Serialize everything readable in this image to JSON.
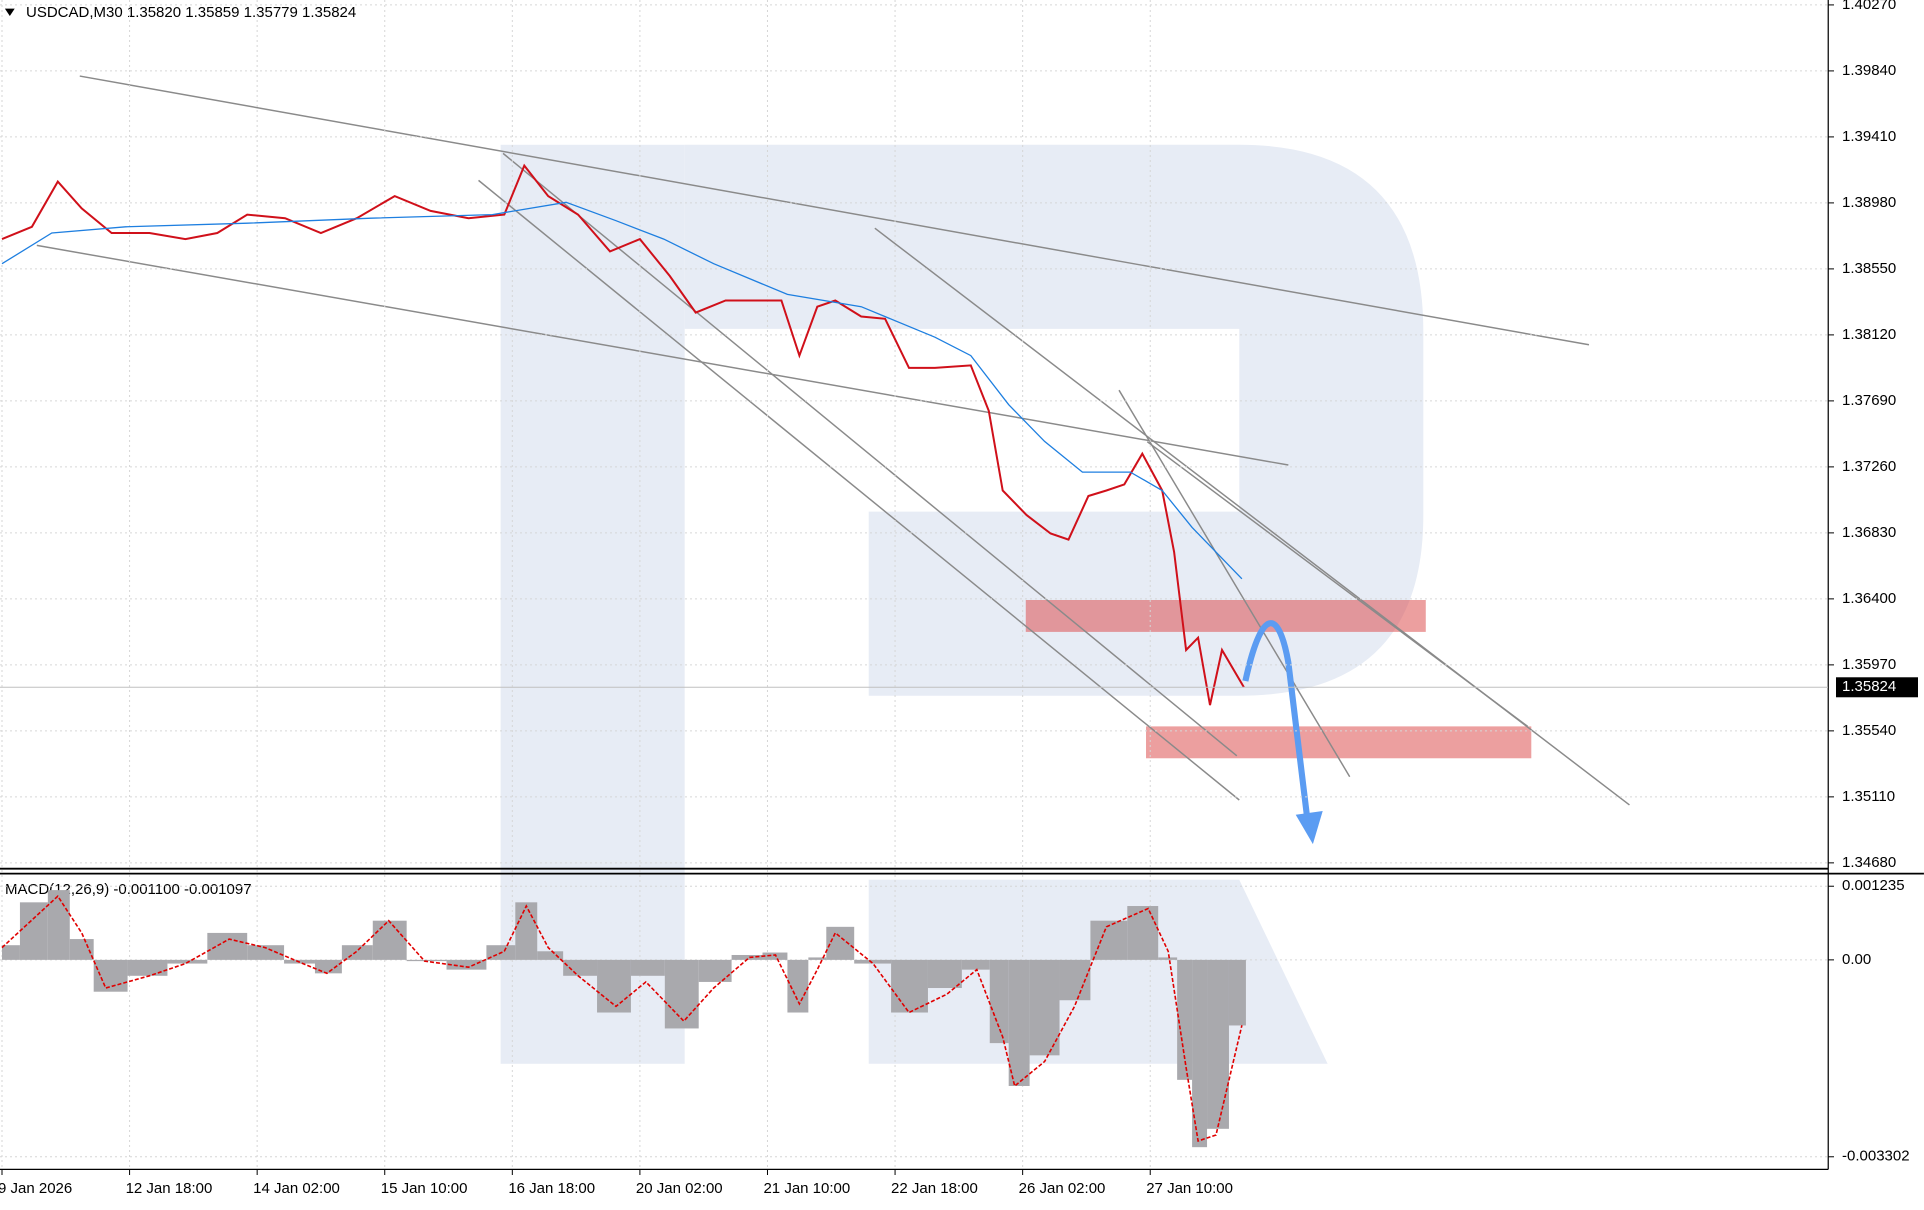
{
  "chart_data": [
    {
      "type": "line",
      "title": "USDCAD,M30  1.35820 1.35859 1.35779 1.35824",
      "series": [
        {
          "color": "#d0101a",
          "x": [
            0,
            15,
            28,
            40,
            55,
            74,
            92,
            108,
            123,
            142,
            160,
            178,
            197,
            215,
            234,
            252,
            262,
            274,
            289,
            305,
            320,
            335,
            348,
            363,
            378,
            391,
            400,
            409,
            418,
            431,
            443,
            455,
            468,
            486,
            495,
            502,
            514,
            526,
            535,
            545,
            554,
            563,
            572,
            582,
            588,
            594,
            600,
            606,
            612,
            623
          ],
          "values": [
            1.38744,
            1.38824,
            1.39119,
            1.38944,
            1.38784,
            1.38784,
            1.38744,
            1.38784,
            1.38904,
            1.3888,
            1.38784,
            1.3888,
            1.39024,
            1.38928,
            1.3888,
            1.38904,
            1.39223,
            1.39024,
            1.38904,
            1.38664,
            1.38744,
            1.38504,
            1.38265,
            1.38344,
            1.38344,
            1.38344,
            1.37985,
            1.38304,
            1.38344,
            1.3824,
            1.38225,
            1.37905,
            1.37905,
            1.37921,
            1.37625,
            1.37106,
            1.36946,
            1.36826,
            1.36786,
            1.3707,
            1.37106,
            1.37146,
            1.37346,
            1.37106,
            1.36706,
            1.36067,
            1.36147,
            1.35708,
            1.36067,
            1.35824
          ]
        },
        {
          "color": "#1e7fe0",
          "x": [
            0,
            25,
            62,
            123,
            185,
            246,
            283,
            308,
            332,
            357,
            394,
            431,
            468,
            486,
            505,
            523,
            542,
            566,
            582,
            597,
            622
          ],
          "values": [
            1.38584,
            1.38784,
            1.38824,
            1.38848,
            1.3888,
            1.38904,
            1.38984,
            1.38864,
            1.38744,
            1.38584,
            1.38384,
            1.38304,
            1.38105,
            1.37985,
            1.37665,
            1.37426,
            1.37226,
            1.37226,
            1.37106,
            1.36866,
            1.36531
          ]
        }
      ],
      "last_price": {
        "value": 1.35824,
        "label": "1.35824"
      },
      "xlim": [
        -1,
        916
      ],
      "xticks": [
        {
          "value": 0,
          "label": "9 Jan 2026"
        },
        {
          "value": 64,
          "label": "12 Jan 18:00"
        },
        {
          "value": 128,
          "label": "14 Jan 02:00"
        },
        {
          "value": 192,
          "label": "15 Jan 10:00"
        },
        {
          "value": 256,
          "label": "16 Jan 18:00"
        },
        {
          "value": 320,
          "label": "20 Jan 02:00"
        },
        {
          "value": 384,
          "label": "21 Jan 10:00"
        },
        {
          "value": 448,
          "label": "22 Jan 18:00"
        },
        {
          "value": 512,
          "label": "26 Jan 02:00"
        },
        {
          "value": 576,
          "label": "27 Jan 10:00"
        }
      ],
      "ylim": [
        1.3464,
        1.40302
      ],
      "yticks": [
        {
          "value": 1.4027,
          "label": "1.40270"
        },
        {
          "value": 1.3984,
          "label": "1.39840"
        },
        {
          "value": 1.3941,
          "label": "1.39410"
        },
        {
          "value": 1.3898,
          "label": "1.38980"
        },
        {
          "value": 1.3855,
          "label": "1.38550"
        },
        {
          "value": 1.3812,
          "label": "1.38120"
        },
        {
          "value": 1.3769,
          "label": "1.37690"
        },
        {
          "value": 1.3726,
          "label": "1.37260"
        },
        {
          "value": 1.3683,
          "label": "1.36830"
        },
        {
          "value": 1.364,
          "label": "1.36400"
        },
        {
          "value": 1.3597,
          "label": "1.35970"
        },
        {
          "value": 1.3554,
          "label": "1.35540"
        },
        {
          "value": 1.3511,
          "label": "1.35110"
        },
        {
          "value": 1.3468,
          "label": "1.34680"
        }
      ],
      "grid": true
    },
    {
      "type": "bar",
      "title": "MACD(12,26,9) -0.001100 -0.001097",
      "x": [
        0,
        18,
        28,
        40,
        52,
        74,
        92,
        114,
        132,
        151,
        163,
        178,
        194,
        212,
        234,
        252,
        263,
        274,
        289,
        308,
        323,
        342,
        357,
        375,
        388,
        400,
        409,
        418,
        437,
        455,
        474,
        489,
        502,
        508,
        523,
        538,
        554,
        575,
        585,
        594,
        600,
        609,
        622
      ],
      "series": [
        {
          "type": "bar",
          "color": "#a9a9ad",
          "values": [
            0.000246,
            0.000965,
            0.00117,
            0.000349,
            -0.000534,
            -0.000267,
            -6.2e-05,
            0.000452,
            0.000246,
            -6.2e-05,
            -0.000226,
            0.000246,
            0.000657,
            -2.1e-05,
            -0.000164,
            0.000246,
            0.000965,
            0.000144,
            -0.000267,
            -0.000883,
            -0.000267,
            -0.00115,
            -0.00037,
            8.2e-05,
            0.000123,
            -0.000883,
            4.1e-05,
            0.000554,
            -6.2e-05,
            -0.000883,
            -0.000472,
            -0.000164,
            -0.001396,
            -0.002115,
            -0.001601,
            -0.000677,
            0.000657,
            0.000903,
            4.1e-05,
            -0.002012,
            -0.003141,
            -0.002833,
            -0.0011
          ]
        },
        {
          "type": "line",
          "color": "#e00000",
          "values": [
            0.000205,
            0.00076,
            0.001068,
            0.000452,
            -0.000472,
            -0.000267,
            -6.2e-05,
            0.000349,
            0.000205,
            -6.2e-05,
            -0.000226,
            0.000144,
            0.000657,
            -2.1e-05,
            -0.000123,
            0.000144,
            0.000903,
            0.000205,
            -0.000267,
            -0.00078,
            -0.00037,
            -0.001026,
            -0.000472,
            4.1e-05,
            8.2e-05,
            -0.000739,
            -0.000164,
            0.000452,
            -6.2e-05,
            -0.000883,
            -0.000575,
            -0.000164,
            -0.001293,
            -0.002115,
            -0.001704,
            -0.00078,
            0.000554,
            0.000862,
            0.000144,
            -0.001807,
            -0.003038,
            -0.002936,
            -0.001097
          ]
        }
      ],
      "ylim": [
        -0.003507,
        0.00144
      ],
      "yticks": [
        0.001235,
        {
          "value": 0,
          "label": "0.00"
        },
        -0.003302
      ],
      "grid": true
    }
  ]
}
